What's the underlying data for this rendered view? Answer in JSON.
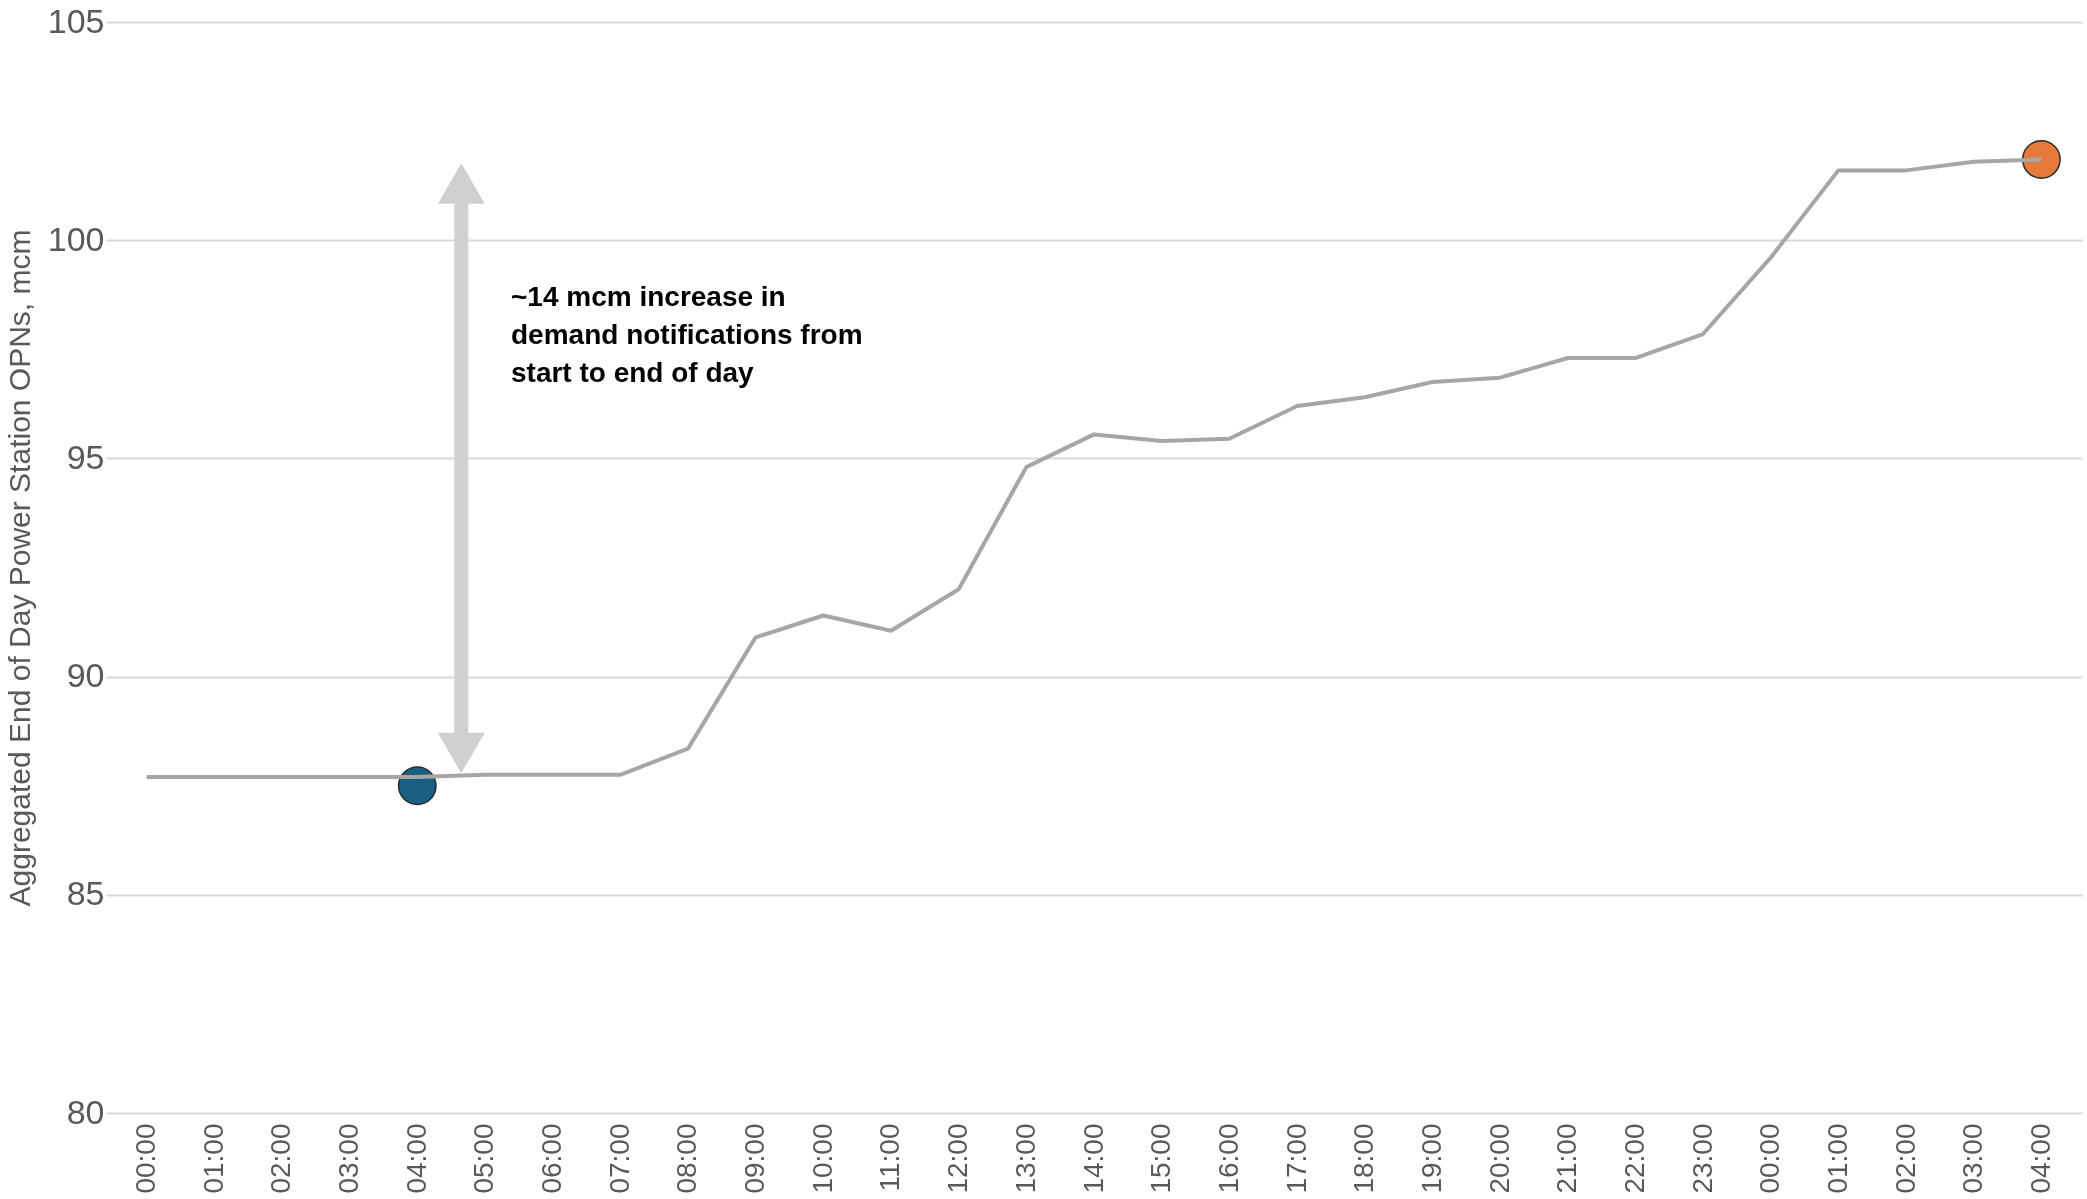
{
  "chart_data": {
    "type": "line",
    "ylabel": "Aggregated End of Day Power Station OPNs, mcm",
    "categories": [
      "00:00",
      "01:00",
      "02:00",
      "03:00",
      "04:00",
      "05:00",
      "06:00",
      "07:00",
      "08:00",
      "09:00",
      "10:00",
      "11:00",
      "12:00",
      "13:00",
      "14:00",
      "15:00",
      "16:00",
      "17:00",
      "18:00",
      "19:00",
      "20:00",
      "21:00",
      "22:00",
      "23:00",
      "00:00",
      "01:00",
      "02:00",
      "03:00",
      "04:00"
    ],
    "series": [
      {
        "color": "#a6a6a6",
        "marker": "none",
        "values": [
          87.7,
          87.7,
          87.7,
          87.7,
          87.7,
          87.75,
          87.75,
          87.75,
          88.35,
          90.9,
          91.4,
          91.05,
          92.0,
          94.8,
          95.55,
          95.4,
          95.45,
          96.2,
          96.4,
          96.75,
          96.85,
          97.3,
          97.3,
          97.85,
          99.6,
          101.6,
          101.6,
          101.8,
          101.85
        ]
      },
      {
        "type": "scatter",
        "color": "#1a5e82",
        "marker": "circle",
        "values": [
          null,
          null,
          null,
          null,
          87.5,
          null,
          null,
          null,
          null,
          null,
          null,
          null,
          null,
          null,
          null,
          null,
          null,
          null,
          null,
          null,
          null,
          null,
          null,
          null,
          null,
          null,
          null,
          null,
          null
        ]
      },
      {
        "type": "scatter",
        "color": "#e8793a",
        "marker": "circle",
        "values": [
          null,
          null,
          null,
          null,
          null,
          null,
          null,
          null,
          null,
          null,
          null,
          null,
          null,
          null,
          null,
          null,
          null,
          null,
          null,
          null,
          null,
          null,
          null,
          null,
          null,
          null,
          null,
          null,
          101.85
        ]
      }
    ],
    "ylim": [
      80,
      105
    ],
    "yticks": [
      80,
      85,
      90,
      95,
      100,
      105
    ],
    "grid": "y",
    "annotations": [
      "~14 mcm increase in\ndemand notifications from\nstart to end of day"
    ]
  }
}
